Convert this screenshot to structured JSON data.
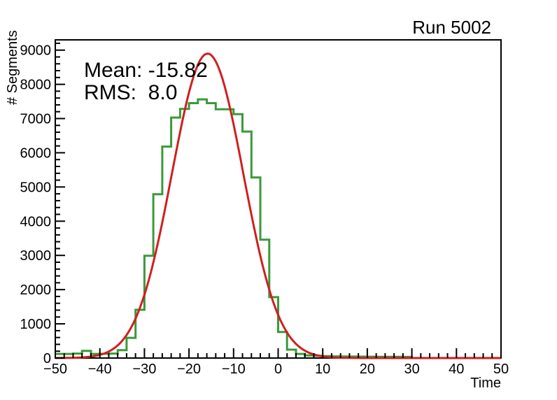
{
  "chart_data": {
    "type": "bar",
    "subtype": "step-histogram-with-gaussian-fit",
    "title": "Run 5002",
    "xlabel": "Time",
    "ylabel": "# Segments",
    "xlim": [
      -50,
      50
    ],
    "ylim": [
      0,
      9300
    ],
    "x_major_tick_step": 10,
    "x_minor_tick_step": 2,
    "y_major_tick_step": 1000,
    "y_max_labeled_tick": 9000,
    "y_minor_tick_step": 200,
    "grid": "off",
    "legend": "none",
    "histogram": {
      "name": "time-distribution",
      "line_color": "#3a9a3a",
      "bin_start": -50,
      "bin_width": 2,
      "counts": [
        120,
        120,
        130,
        210,
        120,
        125,
        130,
        230,
        590,
        1410,
        2990,
        4790,
        6180,
        7030,
        7280,
        7450,
        7560,
        7450,
        7270,
        7270,
        7130,
        6620,
        5280,
        3460,
        1780,
        760,
        245,
        120,
        75,
        65,
        55,
        50,
        45,
        42,
        40,
        38,
        36,
        35,
        34,
        33,
        0,
        0,
        0,
        0,
        0,
        0,
        0,
        0,
        0,
        0
      ]
    },
    "fit": {
      "name": "gaussian-fit",
      "line_color": "#d01f1f",
      "amplitude": 8900,
      "mean": -15.82,
      "sigma": 8.0
    },
    "annotations": [
      "Mean: -15.82",
      "RMS:  8.0"
    ]
  }
}
